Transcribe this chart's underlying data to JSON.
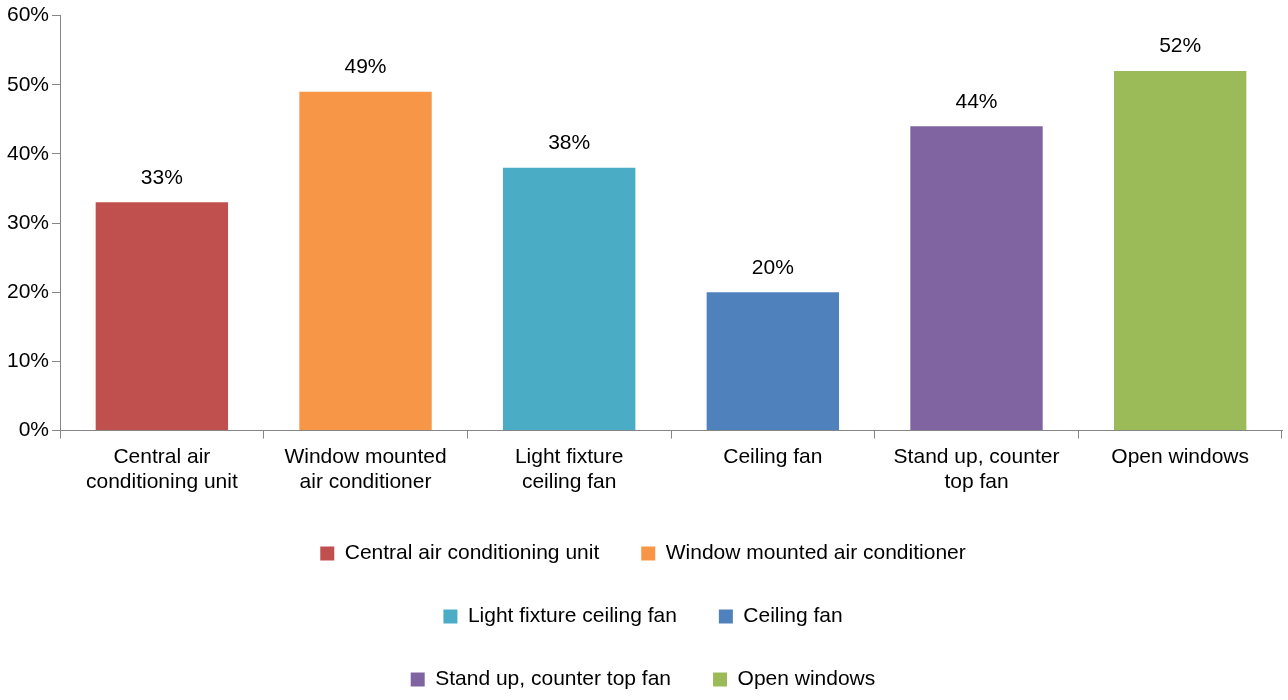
{
  "chart_data": {
    "type": "bar",
    "categories": [
      "Central air conditioning unit",
      "Window mounted air conditioner",
      "Light fixture ceiling fan",
      "Ceiling fan",
      "Stand up, counter top fan",
      "Open windows"
    ],
    "series": [
      {
        "name": "Central air conditioning unit",
        "color": "#c0504d",
        "values": [
          33,
          null,
          null,
          null,
          null,
          null
        ],
        "value_labels": [
          "33%",
          null,
          null,
          null,
          null,
          null
        ]
      },
      {
        "name": "Window mounted air conditioner",
        "color": "#f79646",
        "values": [
          null,
          49,
          null,
          null,
          null,
          null
        ],
        "value_labels": [
          null,
          "49%",
          null,
          null,
          null,
          null
        ]
      },
      {
        "name": "Light fixture ceiling fan",
        "color": "#4bacc6",
        "values": [
          null,
          null,
          38,
          null,
          null,
          null
        ],
        "value_labels": [
          null,
          null,
          "38%",
          null,
          null,
          null
        ]
      },
      {
        "name": "Ceiling fan",
        "color": "#4f81bd",
        "values": [
          null,
          null,
          null,
          20,
          null,
          null
        ],
        "value_labels": [
          null,
          null,
          null,
          "20%",
          null,
          null
        ]
      },
      {
        "name": "Stand up, counter top fan",
        "color": "#8064a2",
        "values": [
          null,
          null,
          null,
          null,
          44,
          null
        ],
        "value_labels": [
          null,
          null,
          null,
          null,
          "44%",
          null
        ]
      },
      {
        "name": "Open windows",
        "color": "#9bbb59",
        "values": [
          null,
          null,
          null,
          null,
          null,
          52
        ],
        "value_labels": [
          null,
          null,
          null,
          null,
          null,
          "52%"
        ]
      }
    ],
    "ylim": [
      0,
      60
    ],
    "yticks": [
      {
        "value": 0,
        "label": "0%"
      },
      {
        "value": 10,
        "label": "10%"
      },
      {
        "value": 20,
        "label": "20%"
      },
      {
        "value": 30,
        "label": "30%"
      },
      {
        "value": 40,
        "label": "40%"
      },
      {
        "value": 50,
        "label": "50%"
      },
      {
        "value": 60,
        "label": "60%"
      }
    ],
    "grid": false,
    "legend": "bottom"
  }
}
